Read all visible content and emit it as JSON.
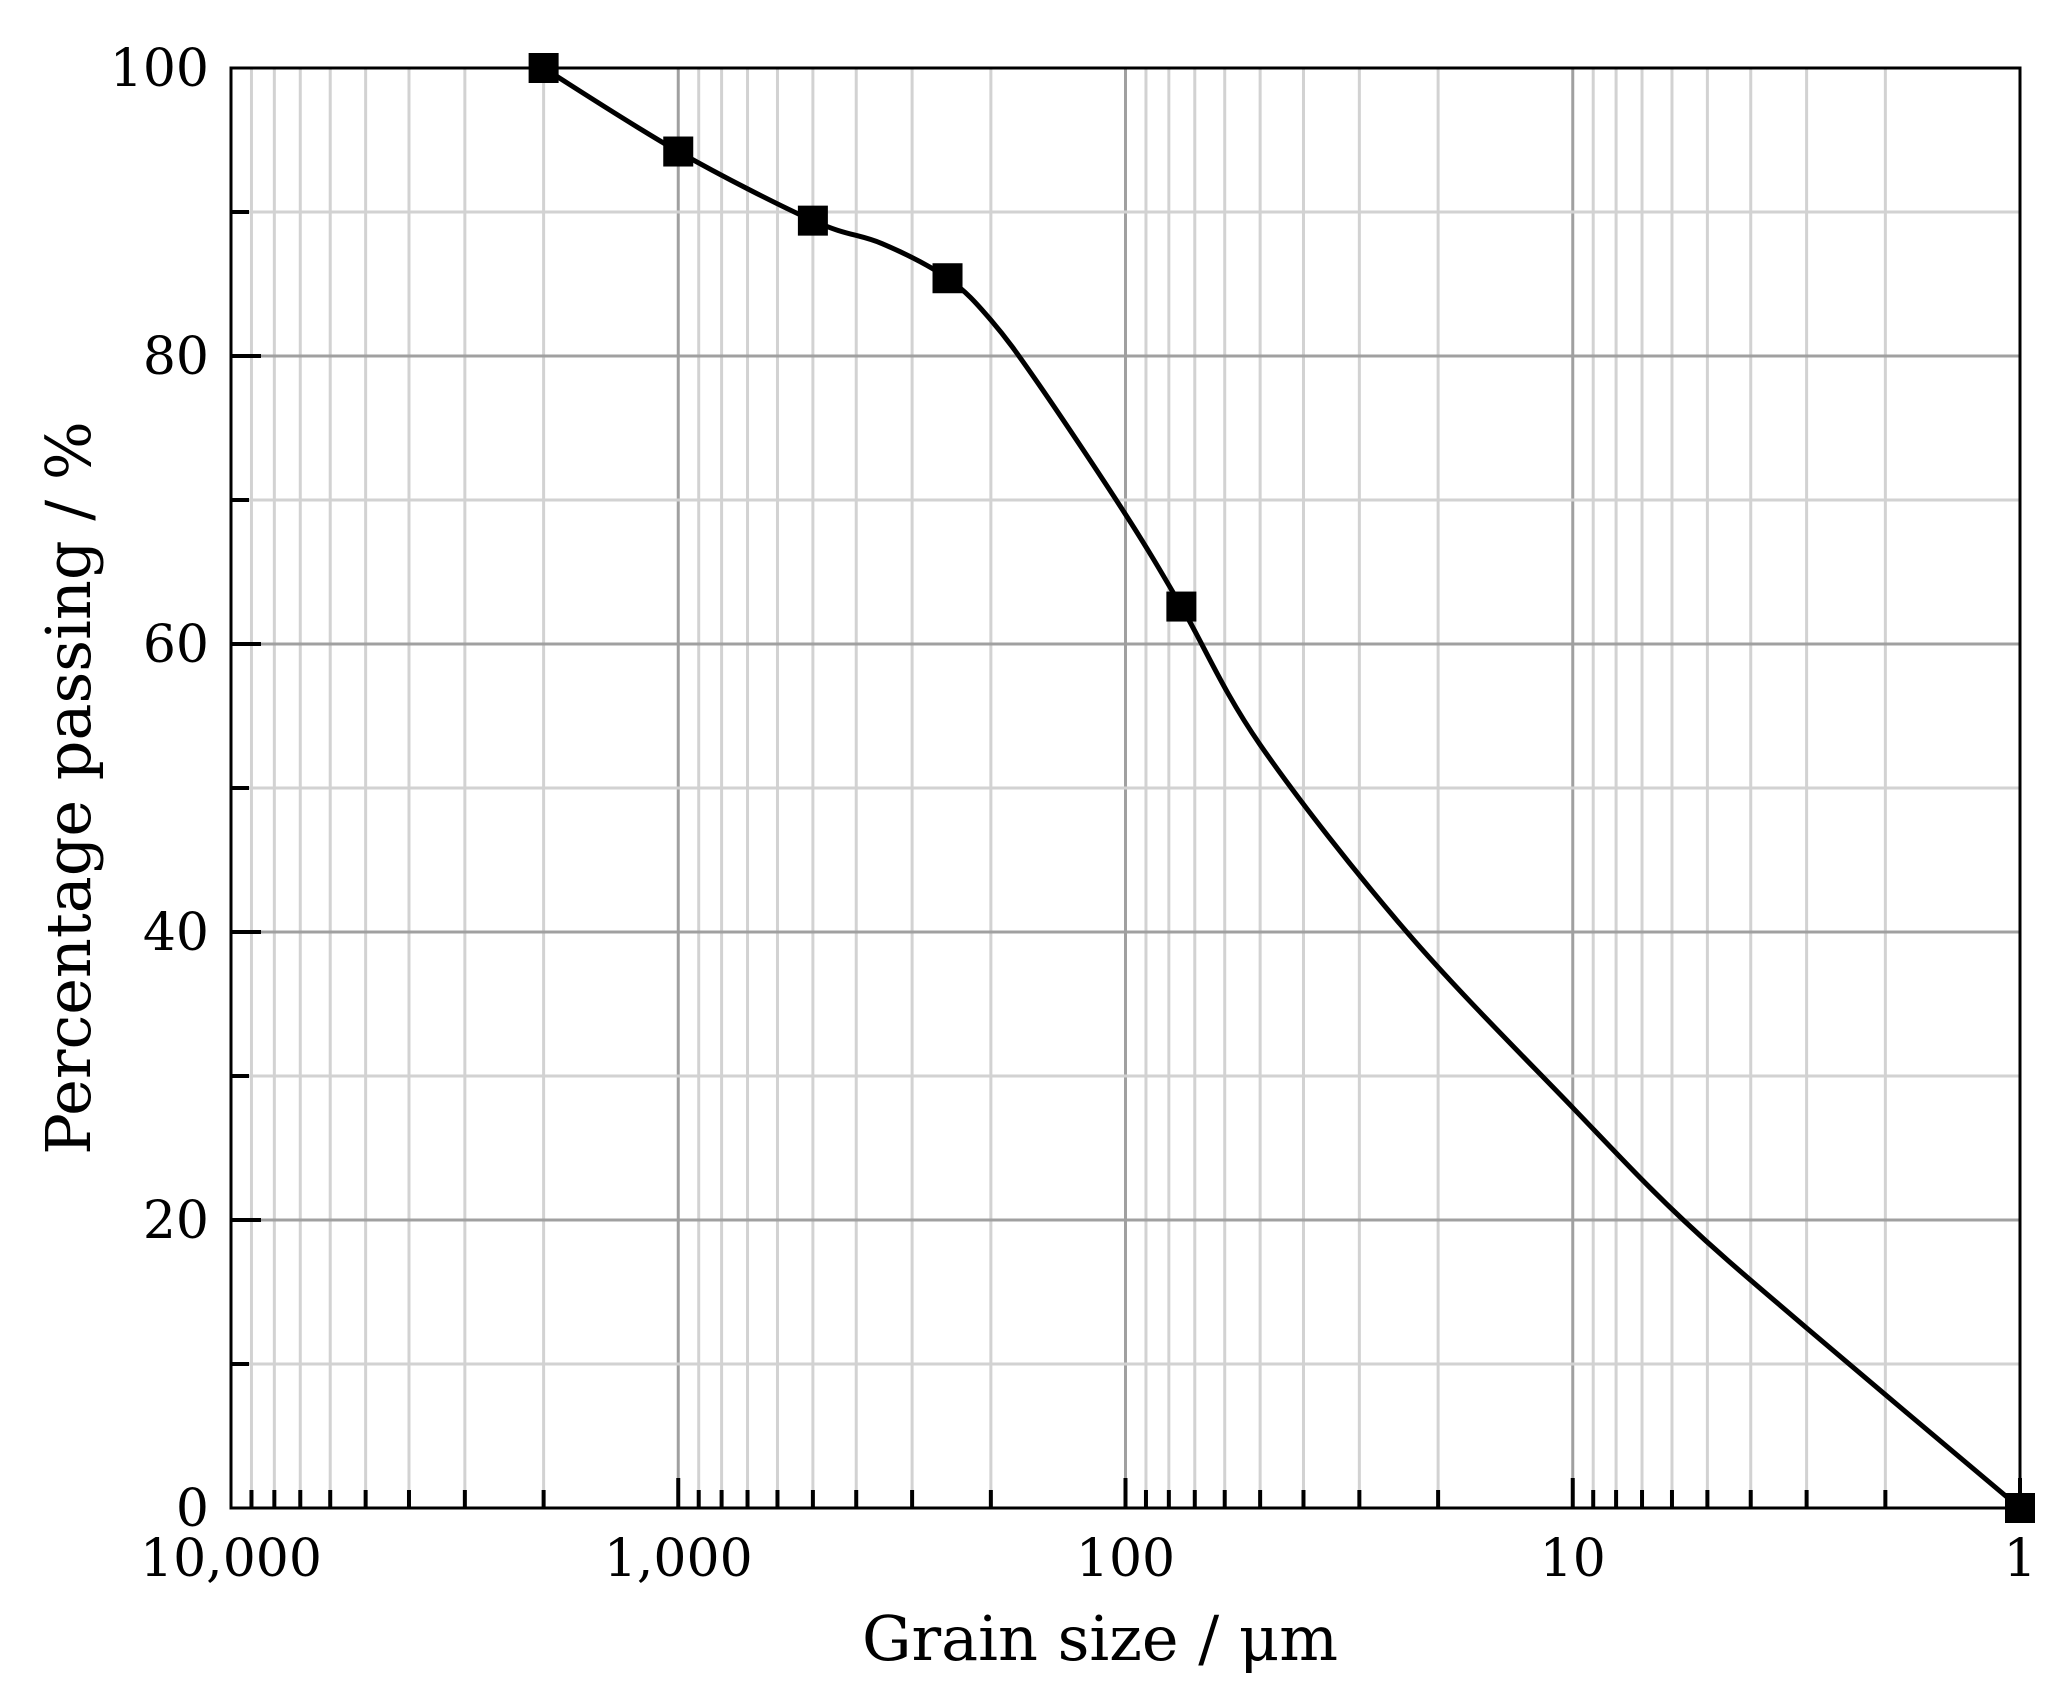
{
  "chart_data": {
    "type": "line",
    "xlabel": "Grain size / μm",
    "ylabel": "Percentage passing / %",
    "x_scale": "log",
    "x_reversed": true,
    "xlim": [
      10000,
      1
    ],
    "ylim": [
      0,
      100
    ],
    "x_ticks": [
      10000,
      1000,
      100,
      10,
      1
    ],
    "x_tick_labels": [
      "10,000",
      "1,000",
      "100",
      "10",
      "1"
    ],
    "y_ticks": [
      0,
      20,
      40,
      60,
      80,
      100
    ],
    "y_tick_labels": [
      "0",
      "20",
      "40",
      "60",
      "80",
      "100"
    ],
    "grid": true,
    "series": [
      {
        "marker": "square",
        "color": "#000000",
        "points": [
          {
            "x": 2000,
            "y": 100
          },
          {
            "x": 1000,
            "y": 94.2
          },
          {
            "x": 500,
            "y": 89.4
          },
          {
            "x": 250,
            "y": 85.4
          },
          {
            "x": 75,
            "y": 62.6
          },
          {
            "x": 1,
            "y": 0
          }
        ],
        "curve": [
          {
            "x": 2000,
            "y": 100
          },
          {
            "x": 1000,
            "y": 94.2
          },
          {
            "x": 500,
            "y": 89.4
          },
          {
            "x": 350,
            "y": 87.8
          },
          {
            "x": 250,
            "y": 85.4
          },
          {
            "x": 200,
            "y": 82.5
          },
          {
            "x": 156,
            "y": 78
          },
          {
            "x": 100,
            "y": 69
          },
          {
            "x": 75,
            "y": 62.6
          },
          {
            "x": 50,
            "y": 53
          },
          {
            "x": 23.5,
            "y": 40
          },
          {
            "x": 10,
            "y": 27.8
          },
          {
            "x": 5.66,
            "y": 20
          },
          {
            "x": 3,
            "y": 12.5
          },
          {
            "x": 1,
            "y": 0
          }
        ]
      }
    ]
  }
}
